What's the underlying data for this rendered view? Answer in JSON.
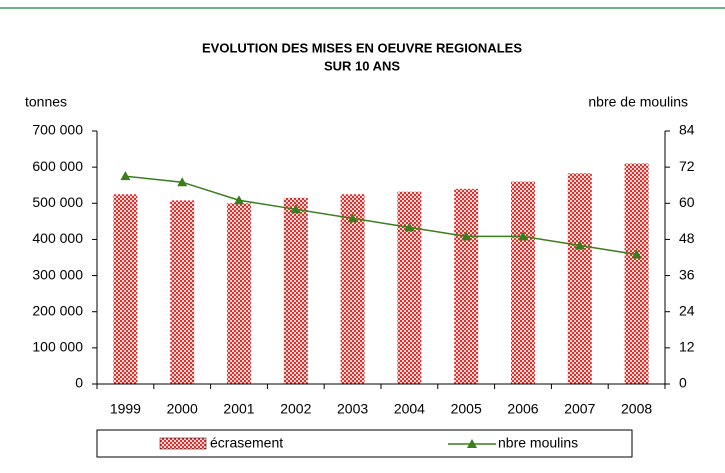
{
  "chart_data": {
    "type": "bar_line",
    "title": [
      "EVOLUTION DES MISES EN OEUVRE REGIONALES",
      "SUR 10 ANS"
    ],
    "ylabel": "tonnes",
    "y2label": "nbre de moulins",
    "categories": [
      "1999",
      "2000",
      "2001",
      "2002",
      "2003",
      "2004",
      "2005",
      "2006",
      "2007",
      "2008"
    ],
    "series": [
      {
        "name": "écrasement",
        "type": "bar",
        "color": "#e0302c",
        "values": [
          525000,
          508000,
          500000,
          515000,
          525000,
          532000,
          540000,
          560000,
          583000,
          610000
        ]
      },
      {
        "name": "nbre moulins",
        "type": "line",
        "axis": "y2",
        "color": "#3a7d1e",
        "values": [
          69,
          67,
          61,
          58,
          55,
          52,
          49,
          49,
          46,
          43
        ]
      }
    ],
    "ylim": [
      0,
      700000
    ],
    "yticks": [
      {
        "value": 0,
        "label": "0"
      },
      {
        "value": 100000,
        "label": "100 000"
      },
      {
        "value": 200000,
        "label": "200 000"
      },
      {
        "value": 300000,
        "label": "300 000"
      },
      {
        "value": 400000,
        "label": "400 000"
      },
      {
        "value": 500000,
        "label": "500 000"
      },
      {
        "value": 600000,
        "label": "600 000"
      },
      {
        "value": 700000,
        "label": "700 000"
      }
    ],
    "y2lim": [
      0,
      84
    ],
    "y2ticks": [
      0,
      12,
      24,
      36,
      48,
      60,
      72,
      84
    ],
    "grid": false,
    "legend": "bottom"
  }
}
